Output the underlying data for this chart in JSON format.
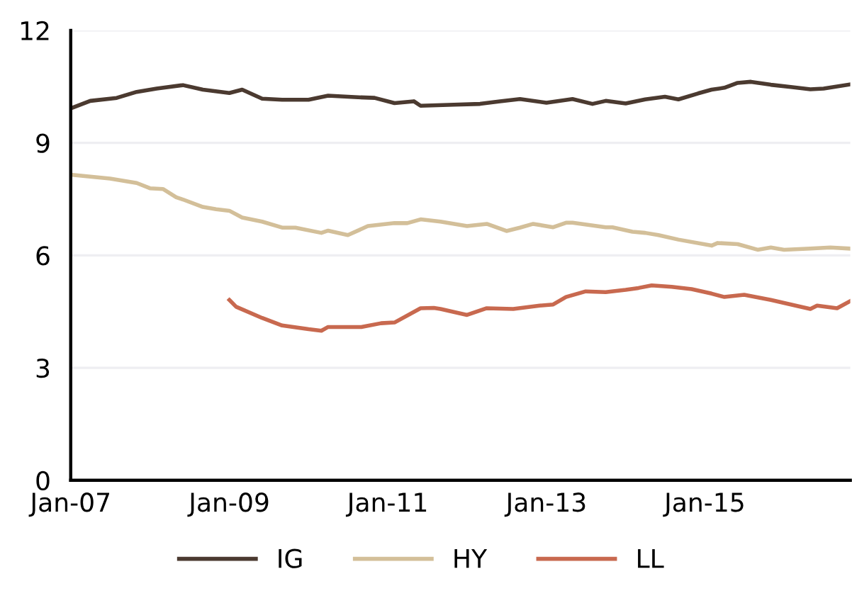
{
  "chart_data": {
    "type": "line",
    "ylim": [
      0,
      12
    ],
    "yticks": [
      0,
      3,
      6,
      9,
      12
    ],
    "xlim": [
      "2007-01",
      "2016-11"
    ],
    "xticks": [
      {
        "value": "2007-01",
        "label": "Jan-07"
      },
      {
        "value": "2009-01",
        "label": "Jan-09"
      },
      {
        "value": "2011-01",
        "label": "Jan-11"
      },
      {
        "value": "2013-01",
        "label": "Jan-13"
      },
      {
        "value": "2015-01",
        "label": "Jan-15"
      }
    ],
    "grid": "y",
    "legend": "bottom",
    "marker": "none",
    "line_style": "solid",
    "series": [
      {
        "name": "IG",
        "color": "#4b3a30",
        "x": [
          "2007-01",
          "2007-04",
          "2007-08",
          "2007-11",
          "2008-02",
          "2008-06",
          "2008-09",
          "2009-01",
          "2009-03",
          "2009-06",
          "2009-09",
          "2010-01",
          "2010-04",
          "2010-08",
          "2010-11",
          "2011-02",
          "2011-05",
          "2011-06",
          "2011-11",
          "2012-03",
          "2012-06",
          "2012-09",
          "2013-01",
          "2013-05",
          "2013-08",
          "2013-10",
          "2014-01",
          "2014-04",
          "2014-07",
          "2014-09",
          "2014-12",
          "2015-02",
          "2015-04",
          "2015-06",
          "2015-08",
          "2015-11",
          "2016-02",
          "2016-05",
          "2016-07",
          "2016-11"
        ],
        "values": [
          9.92,
          10.12,
          10.2,
          10.36,
          10.45,
          10.54,
          10.42,
          10.33,
          10.42,
          10.18,
          10.15,
          10.15,
          10.26,
          10.22,
          10.2,
          10.06,
          10.11,
          9.99,
          10.02,
          10.04,
          10.11,
          10.17,
          10.07,
          10.17,
          10.04,
          10.12,
          10.05,
          10.16,
          10.23,
          10.16,
          10.32,
          10.42,
          10.47,
          10.6,
          10.63,
          10.55,
          10.49,
          10.43,
          10.45,
          10.56
        ]
      },
      {
        "name": "HY",
        "color": "#d3bf99",
        "x": [
          "2007-01",
          "2007-07",
          "2007-11",
          "2008-01",
          "2008-03",
          "2008-05",
          "2008-06",
          "2008-09",
          "2008-11",
          "2009-01",
          "2009-03",
          "2009-06",
          "2009-09",
          "2009-11",
          "2010-03",
          "2010-04",
          "2010-07",
          "2010-10",
          "2011-02",
          "2011-04",
          "2011-06",
          "2011-09",
          "2012-01",
          "2012-04",
          "2012-07",
          "2012-09",
          "2012-11",
          "2013-02",
          "2013-04",
          "2013-05",
          "2013-10",
          "2013-11",
          "2014-02",
          "2014-04",
          "2014-06",
          "2014-09",
          "2015-02",
          "2015-03",
          "2015-06",
          "2015-09",
          "2015-11",
          "2016-01",
          "2016-05",
          "2016-08",
          "2016-11"
        ],
        "values": [
          8.15,
          8.05,
          7.93,
          7.79,
          7.77,
          7.55,
          7.49,
          7.29,
          7.23,
          7.19,
          7.01,
          6.9,
          6.74,
          6.74,
          6.6,
          6.66,
          6.54,
          6.78,
          6.86,
          6.86,
          6.96,
          6.9,
          6.78,
          6.84,
          6.65,
          6.74,
          6.84,
          6.75,
          6.87,
          6.87,
          6.75,
          6.75,
          6.63,
          6.6,
          6.54,
          6.42,
          6.26,
          6.33,
          6.3,
          6.15,
          6.21,
          6.15,
          6.18,
          6.21,
          6.18
        ]
      },
      {
        "name": "LL",
        "color": "#c8694f",
        "x": [
          "2009-01",
          "2009-02",
          "2009-06",
          "2009-09",
          "2010-01",
          "2010-03",
          "2010-04",
          "2010-09",
          "2010-12",
          "2011-02",
          "2011-06",
          "2011-08",
          "2011-09",
          "2012-01",
          "2012-04",
          "2012-08",
          "2012-12",
          "2013-02",
          "2013-04",
          "2013-07",
          "2013-10",
          "2014-01",
          "2014-03",
          "2014-05",
          "2014-08",
          "2014-11",
          "2015-02",
          "2015-04",
          "2015-07",
          "2015-11",
          "2016-03",
          "2016-05",
          "2016-06",
          "2016-09",
          "2016-11"
        ],
        "values": [
          4.81,
          4.63,
          4.33,
          4.13,
          4.03,
          3.99,
          4.09,
          4.09,
          4.19,
          4.21,
          4.59,
          4.6,
          4.57,
          4.41,
          4.59,
          4.57,
          4.66,
          4.69,
          4.89,
          5.04,
          5.02,
          5.08,
          5.13,
          5.2,
          5.16,
          5.1,
          4.98,
          4.89,
          4.95,
          4.81,
          4.65,
          4.57,
          4.66,
          4.59,
          4.78
        ]
      }
    ]
  }
}
